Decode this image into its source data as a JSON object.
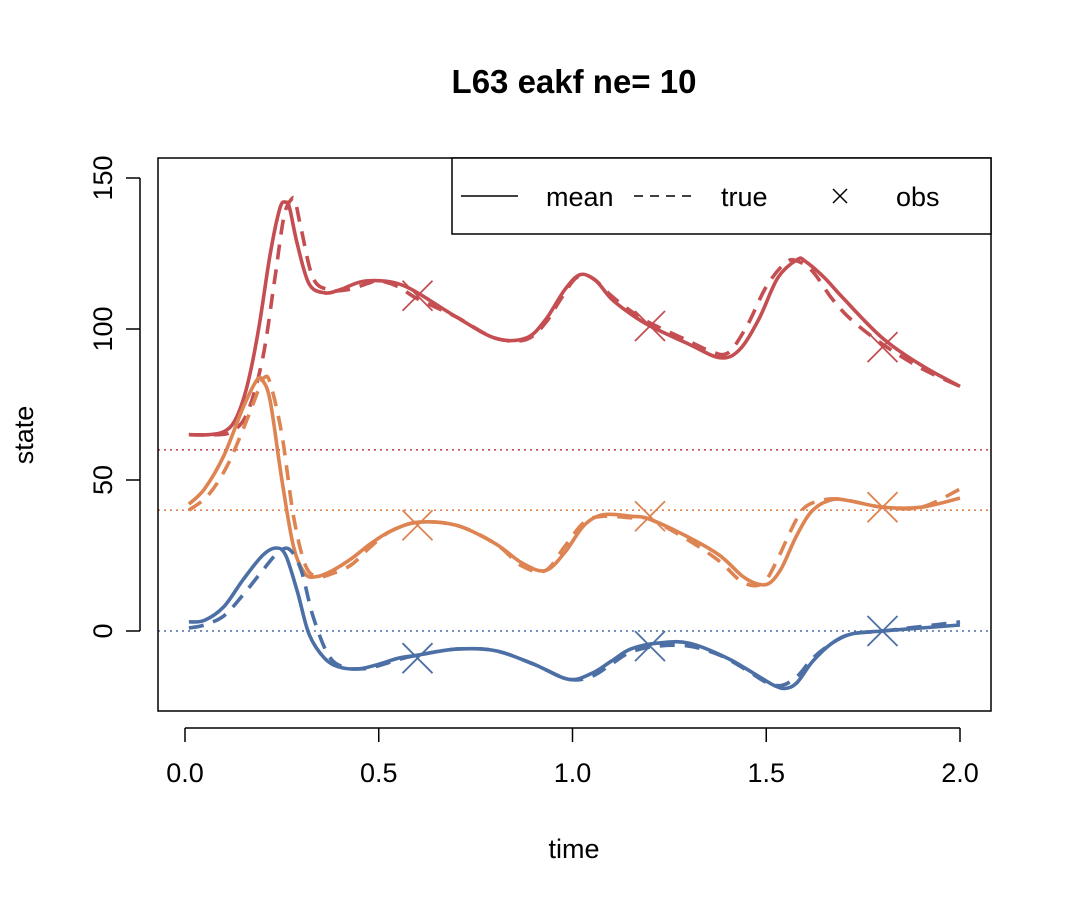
{
  "chart_data": {
    "type": "line",
    "title": "L63 eakf  ne= 10",
    "xlabel": "time",
    "ylabel": "state",
    "xlim": [
      0.0,
      2.0
    ],
    "ylim": [
      -27,
      157
    ],
    "xticks": [
      "0.0",
      "0.5",
      "1.0",
      "1.5",
      "2.0"
    ],
    "xtick_values": [
      0.0,
      0.5,
      1.0,
      1.5,
      2.0
    ],
    "yticks": [
      "0",
      "50",
      "100",
      "150"
    ],
    "ytick_values": [
      0,
      50,
      100,
      150
    ],
    "legend": {
      "position": "top-right",
      "items": [
        {
          "label": "mean",
          "style": "solid"
        },
        {
          "label": "true",
          "style": "dashed"
        },
        {
          "label": "obs",
          "style": "cross"
        }
      ]
    },
    "series": [
      {
        "color": "#c44e52",
        "reference_line": 60,
        "mean": {
          "x": [
            0.01,
            0.06,
            0.1,
            0.13,
            0.16,
            0.19,
            0.22,
            0.245,
            0.26,
            0.27,
            0.29,
            0.32,
            0.36,
            0.4,
            0.45,
            0.5,
            0.55,
            0.6,
            0.7,
            0.8,
            0.88,
            0.93,
            0.98,
            1.02,
            1.06,
            1.1,
            1.15,
            1.2,
            1.3,
            1.38,
            1.43,
            1.48,
            1.53,
            1.58,
            1.6,
            1.65,
            1.7,
            1.8,
            1.9,
            2.0
          ],
          "y": [
            65,
            65,
            66,
            70,
            81,
            100,
            125,
            140,
            142,
            140,
            128,
            115,
            112,
            113,
            115.5,
            116,
            115,
            112,
            104,
            97,
            97,
            103,
            113,
            118,
            116,
            110,
            105,
            101,
            95,
            90.5,
            93,
            103,
            117,
            123,
            122.5,
            117,
            110,
            97,
            88,
            81
          ]
        },
        "true": {
          "x": [
            0.01,
            0.08,
            0.12,
            0.16,
            0.2,
            0.23,
            0.255,
            0.275,
            0.285,
            0.3,
            0.33,
            0.37,
            0.42,
            0.47,
            0.5,
            0.55,
            0.6,
            0.7,
            0.8,
            0.88,
            0.93,
            0.97,
            1.01,
            1.05,
            1.1,
            1.15,
            1.2,
            1.3,
            1.35,
            1.4,
            1.45,
            1.5,
            1.55,
            1.58,
            1.62,
            1.67,
            1.72,
            1.8,
            1.9,
            2.0
          ],
          "y": [
            65,
            65,
            66,
            72,
            90,
            115,
            137,
            143,
            142,
            133,
            117,
            113,
            113,
            115,
            116,
            114,
            110,
            104,
            97,
            96.5,
            102,
            110,
            117,
            117,
            111,
            106,
            102,
            96,
            93,
            92,
            101,
            114,
            122,
            122.5,
            119,
            110,
            103,
            95,
            87,
            81
          ]
        },
        "obs": {
          "x": [
            0.6,
            1.2,
            1.8
          ],
          "y": [
            111,
            101,
            94
          ]
        }
      },
      {
        "color": "#dd8452",
        "reference_line": 40,
        "mean": {
          "x": [
            0.01,
            0.05,
            0.1,
            0.15,
            0.185,
            0.2,
            0.22,
            0.25,
            0.28,
            0.31,
            0.34,
            0.38,
            0.43,
            0.48,
            0.53,
            0.6,
            0.7,
            0.8,
            0.87,
            0.93,
            0.98,
            1.03,
            1.08,
            1.15,
            1.2,
            1.3,
            1.38,
            1.44,
            1.48,
            1.51,
            1.54,
            1.58,
            1.62,
            1.67,
            1.72,
            1.8,
            1.9,
            2.0
          ],
          "y": [
            42,
            47,
            58,
            74,
            83,
            83,
            76,
            50,
            28,
            19,
            18,
            20,
            24,
            29,
            33,
            36,
            35,
            29,
            22.5,
            20,
            26,
            35,
            38.5,
            38,
            37,
            31,
            25,
            18,
            15.5,
            16,
            21,
            32,
            40,
            43.5,
            43,
            41,
            41,
            44
          ]
        },
        "true": {
          "x": [
            0.01,
            0.06,
            0.11,
            0.16,
            0.19,
            0.205,
            0.22,
            0.25,
            0.28,
            0.31,
            0.34,
            0.38,
            0.43,
            0.48,
            0.53,
            0.6,
            0.7,
            0.8,
            0.87,
            0.93,
            0.98,
            1.03,
            1.08,
            1.15,
            1.2,
            1.3,
            1.38,
            1.43,
            1.47,
            1.5,
            1.53,
            1.57,
            1.6,
            1.65,
            1.7,
            1.8,
            1.9,
            2.0
          ],
          "y": [
            40,
            45,
            55,
            70,
            80,
            84,
            82,
            65,
            38,
            22,
            18,
            19,
            22,
            28,
            33,
            36,
            35,
            29,
            21.5,
            20,
            28,
            36,
            38,
            37.5,
            37,
            30,
            23,
            17,
            15,
            17,
            24,
            35,
            41,
            43.5,
            43.5,
            41,
            41,
            47
          ]
        },
        "obs": {
          "x": [
            0.6,
            1.2,
            1.8
          ],
          "y": [
            35,
            38,
            41
          ]
        }
      },
      {
        "color": "#4c6fa5",
        "reference_line": 0,
        "mean": {
          "x": [
            0.01,
            0.05,
            0.1,
            0.15,
            0.2,
            0.235,
            0.26,
            0.29,
            0.32,
            0.36,
            0.4,
            0.45,
            0.5,
            0.55,
            0.6,
            0.7,
            0.8,
            0.9,
            0.99,
            1.05,
            1.1,
            1.15,
            1.22,
            1.3,
            1.4,
            1.48,
            1.52,
            1.55,
            1.58,
            1.62,
            1.67,
            1.72,
            1.8,
            1.9,
            2.0
          ],
          "y": [
            3,
            3.5,
            8,
            17,
            25,
            27.5,
            25,
            13,
            -1,
            -9,
            -12,
            -12.5,
            -11,
            -9,
            -8,
            -6,
            -6.5,
            -11,
            -16,
            -14,
            -10,
            -6,
            -4,
            -4,
            -9,
            -15,
            -18,
            -19,
            -17,
            -10,
            -4,
            -1,
            0,
            1,
            2
          ]
        },
        "true": {
          "x": [
            0.01,
            0.05,
            0.1,
            0.15,
            0.2,
            0.24,
            0.27,
            0.3,
            0.33,
            0.37,
            0.41,
            0.46,
            0.5,
            0.55,
            0.6,
            0.7,
            0.8,
            0.9,
            0.99,
            1.05,
            1.1,
            1.15,
            1.22,
            1.3,
            1.38,
            1.45,
            1.5,
            1.54,
            1.58,
            1.62,
            1.67,
            1.72,
            1.8,
            1.9,
            2.0
          ],
          "y": [
            1,
            2,
            5,
            12,
            20,
            26,
            27,
            20,
            5,
            -8,
            -12,
            -12.5,
            -11.5,
            -9.5,
            -8,
            -6,
            -6.5,
            -11,
            -16,
            -15,
            -11,
            -7,
            -5,
            -5,
            -8,
            -13,
            -17,
            -18,
            -15,
            -9,
            -4,
            -1,
            0,
            1.5,
            3
          ]
        },
        "obs": {
          "x": [
            0.6,
            1.2,
            1.8
          ],
          "y": [
            -9,
            -5,
            0
          ]
        }
      }
    ]
  }
}
